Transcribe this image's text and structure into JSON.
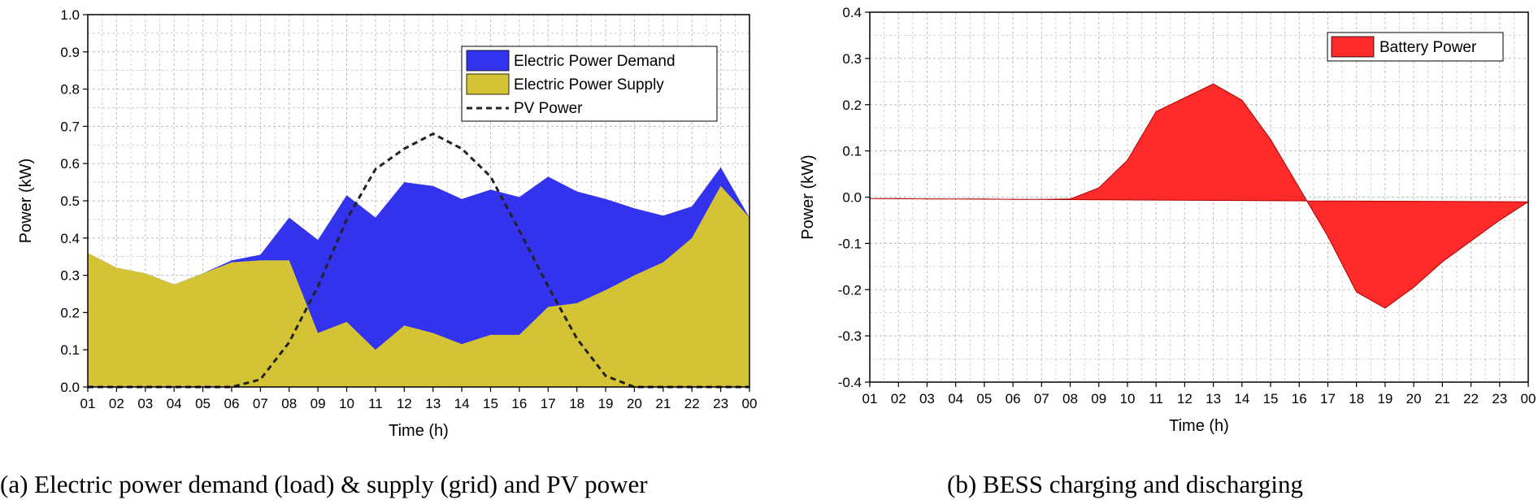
{
  "colors": {
    "demand": "#3333ee",
    "supply": "#d4c435",
    "battery": "#ff2a2a",
    "pv": "#222222",
    "grid": "#bdbdbd"
  },
  "chart_data": [
    {
      "type": "area",
      "caption": "(a) Electric power demand (load) & supply (grid) and PV power",
      "xlabel": "Time (h)",
      "ylabel": "Power (kW)",
      "categories": [
        "01",
        "02",
        "03",
        "04",
        "05",
        "06",
        "07",
        "08",
        "09",
        "10",
        "11",
        "12",
        "13",
        "14",
        "15",
        "16",
        "17",
        "18",
        "19",
        "20",
        "21",
        "22",
        "23",
        "00"
      ],
      "ylim": [
        0,
        1.0
      ],
      "yticks": [
        "0.0",
        "0.1",
        "0.2",
        "0.3",
        "0.4",
        "0.5",
        "0.6",
        "0.7",
        "0.8",
        "0.9",
        "1.0"
      ],
      "grid": true,
      "legend_position": "top-right",
      "series": [
        {
          "name": "Electric Power Demand",
          "kind": "area",
          "values": [
            0.36,
            0.32,
            0.305,
            0.275,
            0.305,
            0.34,
            0.355,
            0.455,
            0.395,
            0.515,
            0.455,
            0.55,
            0.54,
            0.505,
            0.53,
            0.51,
            0.565,
            0.525,
            0.505,
            0.48,
            0.46,
            0.485,
            0.59,
            0.455
          ]
        },
        {
          "name": "Electric Power Supply",
          "kind": "area",
          "values": [
            0.36,
            0.32,
            0.305,
            0.275,
            0.305,
            0.335,
            0.34,
            0.34,
            0.145,
            0.175,
            0.1,
            0.165,
            0.145,
            0.115,
            0.14,
            0.14,
            0.215,
            0.225,
            0.26,
            0.3,
            0.335,
            0.4,
            0.54,
            0.455
          ]
        },
        {
          "name": "PV Power",
          "kind": "dashed-line",
          "values": [
            0,
            0,
            0,
            0,
            0,
            0,
            0.02,
            0.12,
            0.27,
            0.45,
            0.585,
            0.64,
            0.68,
            0.64,
            0.565,
            0.42,
            0.27,
            0.13,
            0.03,
            0,
            0,
            0,
            0,
            0
          ]
        }
      ]
    },
    {
      "type": "area",
      "caption": "(b) BESS charging and discharging",
      "xlabel": "Time (h)",
      "ylabel": "Power (kW)",
      "categories": [
        "01",
        "02",
        "03",
        "04",
        "05",
        "06",
        "07",
        "08",
        "09",
        "10",
        "11",
        "12",
        "13",
        "14",
        "15",
        "16",
        "17",
        "18",
        "19",
        "20",
        "21",
        "22",
        "23",
        "00"
      ],
      "ylim": [
        -0.4,
        0.4
      ],
      "yticks": [
        "-0.4",
        "-0.3",
        "-0.2",
        "-0.1",
        "0.0",
        "0.1",
        "0.2",
        "0.3",
        "0.4"
      ],
      "grid": true,
      "legend_position": "top-right",
      "series": [
        {
          "name": "Battery Power",
          "kind": "area",
          "values": [
            -0.003,
            -0.003,
            -0.004,
            -0.004,
            -0.004,
            -0.005,
            -0.005,
            -0.004,
            0.02,
            0.08,
            0.185,
            0.215,
            0.245,
            0.21,
            0.125,
            0.02,
            -0.085,
            -0.205,
            -0.24,
            -0.195,
            -0.14,
            -0.095,
            -0.05,
            -0.01
          ],
          "baseline_x": [
            1,
            16.25,
            24
          ],
          "baseline_y": [
            -0.003,
            -0.008,
            -0.01
          ]
        }
      ]
    }
  ]
}
